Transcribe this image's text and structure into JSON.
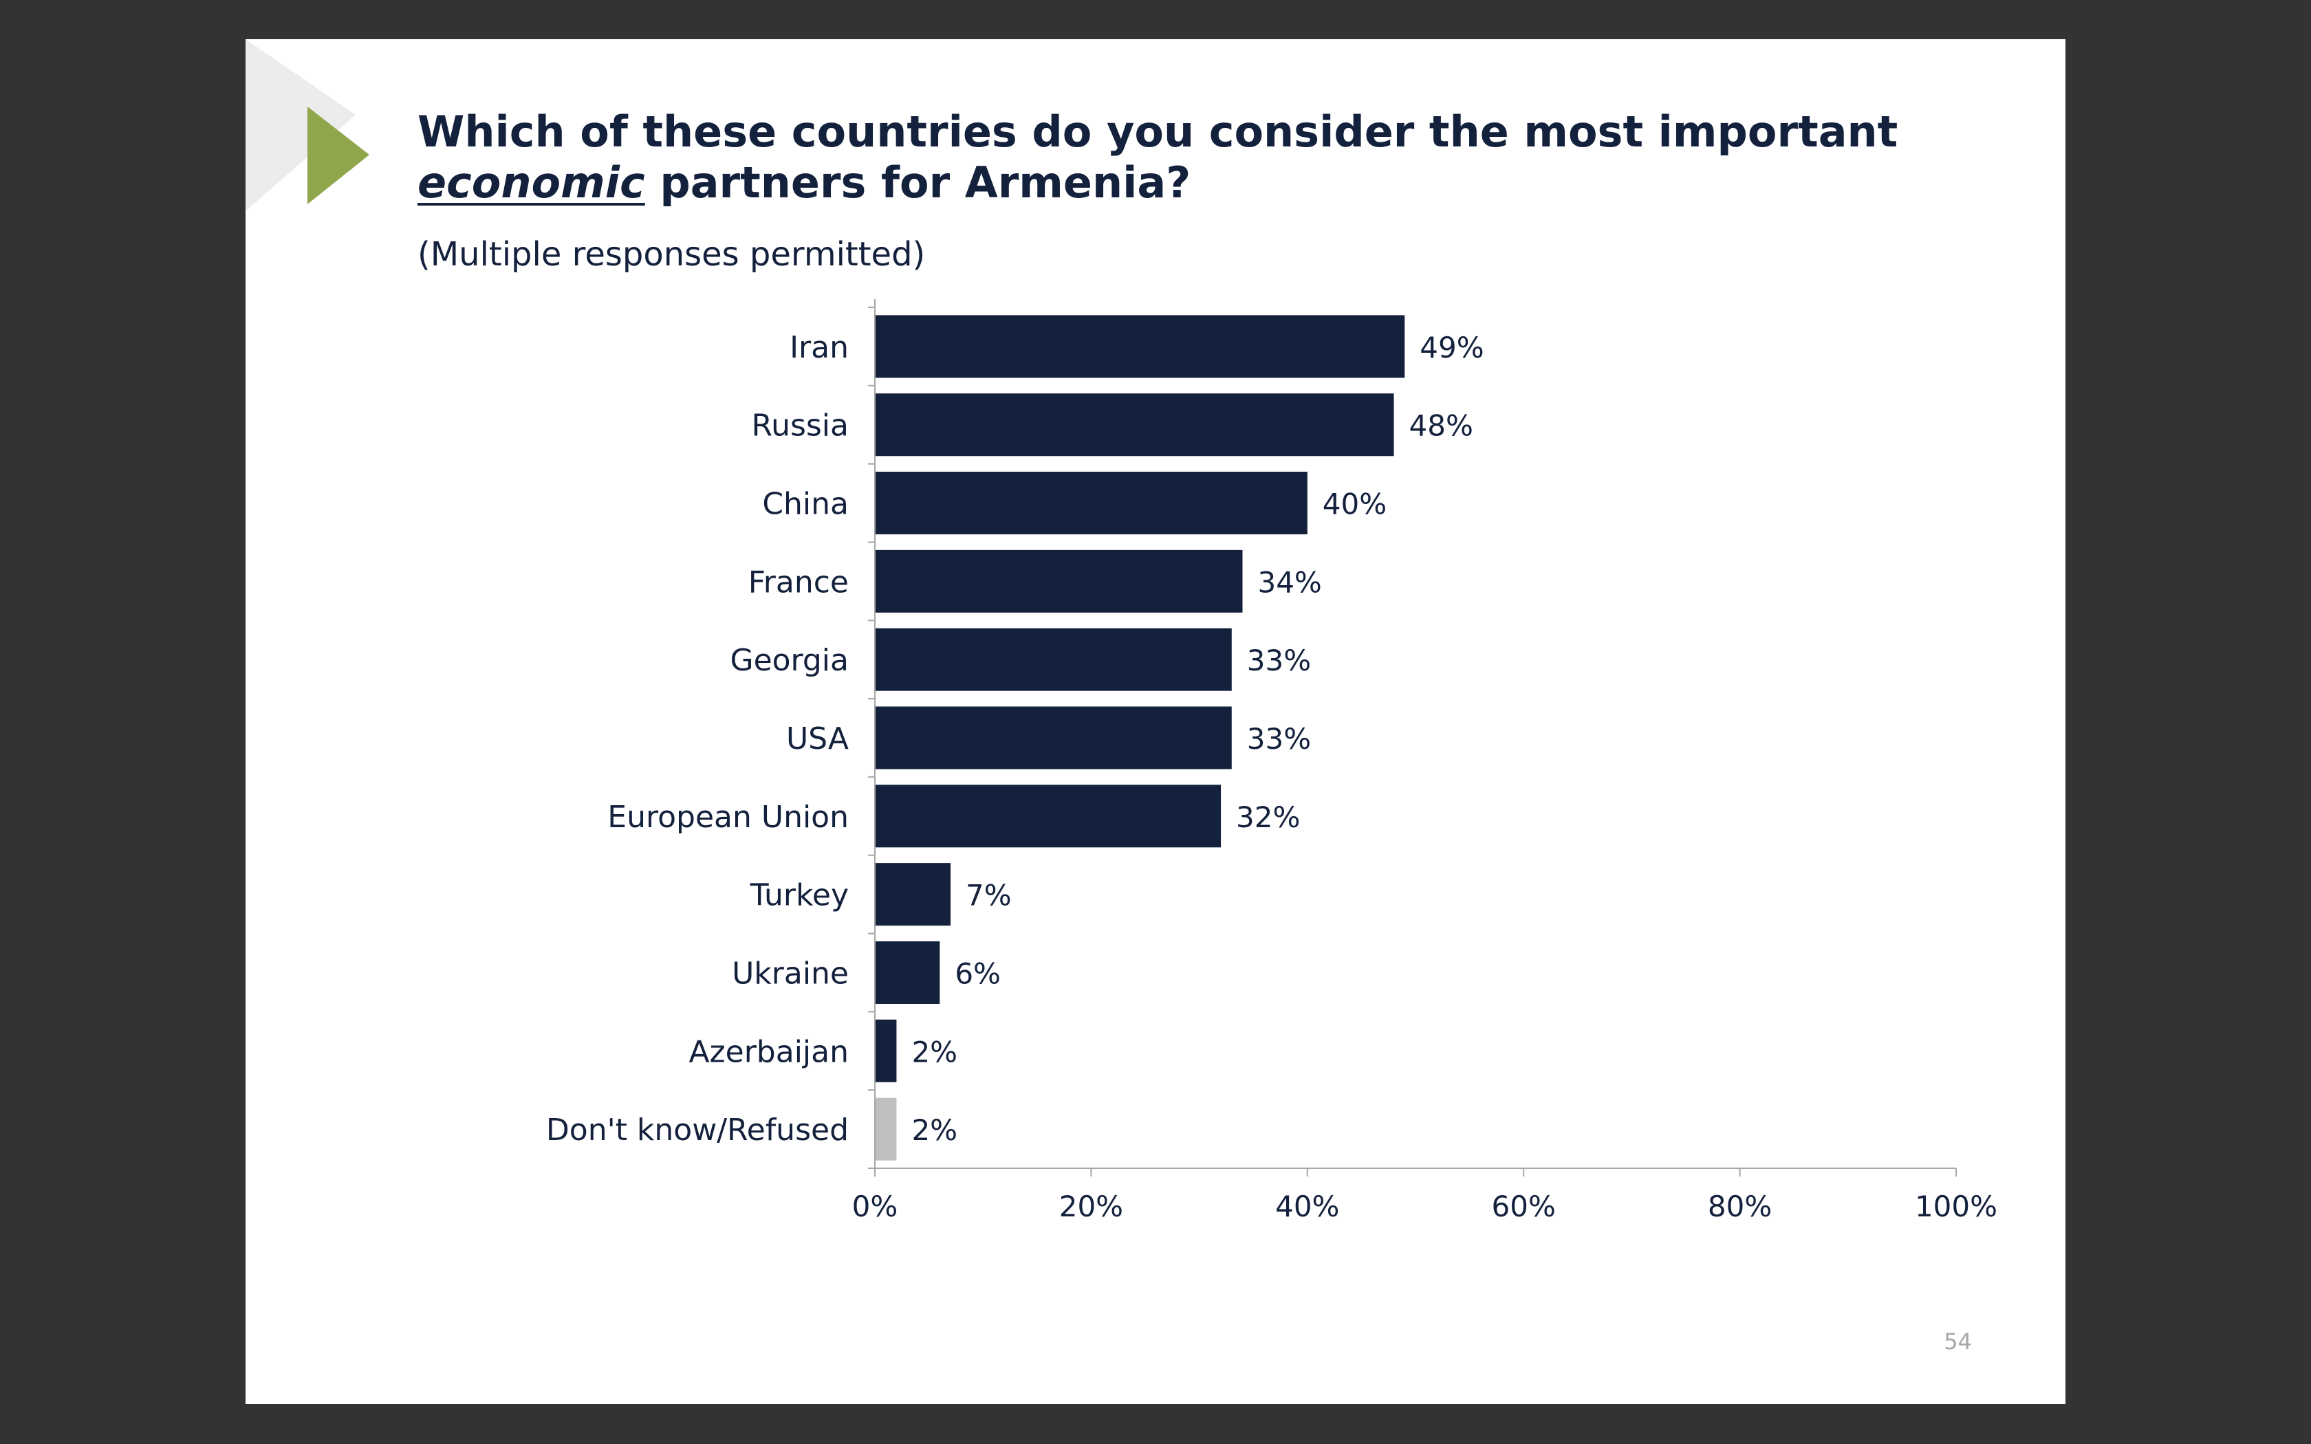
{
  "slide": {
    "title_part1": "Which of these countries do you consider the most important ",
    "title_emphasis": "economic",
    "title_part2": " partners for Armenia?",
    "subtitle": "(Multiple responses permitted)",
    "page_number": "54"
  },
  "colors": {
    "background": "#333333",
    "slide": "#ffffff",
    "bar": "#14213d",
    "bar_muted": "#bfbfbf",
    "accent_triangle": "#8fa64a",
    "deco_triangle": "#ececec"
  },
  "chart_data": {
    "type": "bar",
    "orientation": "horizontal",
    "categories": [
      "Iran",
      "Russia",
      "China",
      "France",
      "Georgia",
      "USA",
      "European Union",
      "Turkey",
      "Ukraine",
      "Azerbaijan",
      "Don't know/Refused"
    ],
    "values": [
      49,
      48,
      40,
      34,
      33,
      33,
      32,
      7,
      6,
      2,
      2
    ],
    "value_labels": [
      "49%",
      "48%",
      "40%",
      "34%",
      "33%",
      "33%",
      "32%",
      "7%",
      "6%",
      "2%",
      "2%"
    ],
    "bar_colors": [
      "#14213d",
      "#14213d",
      "#14213d",
      "#14213d",
      "#14213d",
      "#14213d",
      "#14213d",
      "#14213d",
      "#14213d",
      "#14213d",
      "#bfbfbf"
    ],
    "xlim": [
      0,
      100
    ],
    "xticks": [
      0,
      20,
      40,
      60,
      80,
      100
    ],
    "xtick_labels": [
      "0%",
      "20%",
      "40%",
      "60%",
      "80%",
      "100%"
    ],
    "grid": false,
    "legend": "none"
  }
}
